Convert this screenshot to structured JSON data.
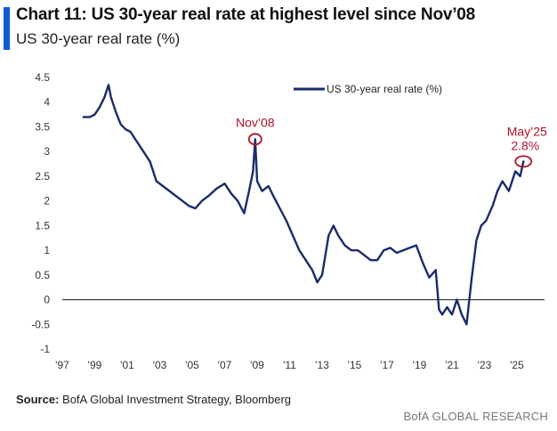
{
  "header": {
    "title": "Chart 11: US 30-year real rate at highest level since Nov’08",
    "subtitle": "US 30-year real rate (%)"
  },
  "footer": {
    "source_label": "Source:",
    "source_text": "BofA Global Investment Strategy, Bloomberg",
    "brand": "BofA GLOBAL RESEARCH"
  },
  "colors": {
    "line": "#1a2b6b",
    "annotation": "#b0102a",
    "accent": "#0a5cd6",
    "zero_line": "#333333"
  },
  "chart_data": {
    "type": "line",
    "title": "Chart 11: US 30-year real rate at highest level since Nov’08",
    "ylabel": "US 30-year real rate (%)",
    "legend": {
      "position": "top-center",
      "entries": [
        "US 30-year real rate (%)"
      ]
    },
    "ylim": [
      -1,
      4.5
    ],
    "xlim": [
      1997,
      2026.7
    ],
    "y_ticks": [
      "4.5",
      "4",
      "3.5",
      "3",
      "2.5",
      "2",
      "1.5",
      "1",
      "0.5",
      "0",
      "-0.5",
      "-1"
    ],
    "x_ticks": [
      "'97",
      "'99",
      "'01",
      "'03",
      "'05",
      "'07",
      "'09",
      "'11",
      "'13",
      "'15",
      "'17",
      "'19",
      "'21",
      "'23",
      "'25"
    ],
    "grid": false,
    "series": [
      {
        "name": "US 30-year real rate (%)",
        "x": [
          1998.3,
          1998.7,
          1999.0,
          1999.3,
          1999.6,
          1999.85,
          2000.0,
          2000.3,
          2000.6,
          2000.9,
          2001.2,
          2001.6,
          2002.0,
          2002.4,
          2002.8,
          2003.2,
          2003.6,
          2004.0,
          2004.4,
          2004.8,
          2005.2,
          2005.6,
          2006.0,
          2006.5,
          2007.0,
          2007.4,
          2007.8,
          2008.2,
          2008.5,
          2008.75,
          2008.88,
          2009.0,
          2009.3,
          2009.7,
          2010.0,
          2010.4,
          2010.8,
          2011.2,
          2011.6,
          2012.0,
          2012.4,
          2012.7,
          2013.0,
          2013.4,
          2013.7,
          2014.0,
          2014.4,
          2014.8,
          2015.2,
          2015.6,
          2016.0,
          2016.4,
          2016.8,
          2017.2,
          2017.6,
          2018.0,
          2018.4,
          2018.8,
          2019.2,
          2019.6,
          2020.0,
          2020.2,
          2020.4,
          2020.7,
          2021.0,
          2021.3,
          2021.6,
          2021.9,
          2022.2,
          2022.5,
          2022.8,
          2023.1,
          2023.5,
          2023.8,
          2024.1,
          2024.5,
          2024.9,
          2025.2,
          2025.4
        ],
        "values": [
          3.7,
          3.7,
          3.75,
          3.9,
          4.1,
          4.35,
          4.1,
          3.8,
          3.55,
          3.45,
          3.4,
          3.2,
          3.0,
          2.8,
          2.4,
          2.3,
          2.2,
          2.1,
          2.0,
          1.9,
          1.85,
          2.0,
          2.1,
          2.25,
          2.35,
          2.15,
          2.0,
          1.75,
          2.2,
          2.6,
          3.25,
          2.4,
          2.2,
          2.3,
          2.1,
          1.85,
          1.6,
          1.3,
          1.0,
          0.8,
          0.6,
          0.35,
          0.5,
          1.3,
          1.5,
          1.3,
          1.1,
          1.0,
          1.0,
          0.9,
          0.8,
          0.8,
          1.0,
          1.05,
          0.95,
          1.0,
          1.05,
          1.1,
          0.75,
          0.45,
          0.6,
          -0.2,
          -0.3,
          -0.15,
          -0.3,
          0.0,
          -0.3,
          -0.5,
          0.4,
          1.2,
          1.5,
          1.6,
          1.9,
          2.2,
          2.4,
          2.2,
          2.6,
          2.5,
          2.8
        ]
      }
    ],
    "annotations": [
      {
        "label": "Nov’08",
        "x": 2008.88,
        "y": 3.25
      },
      {
        "label": "May’25",
        "value_label": "2.8%",
        "x": 2025.4,
        "y": 2.8
      }
    ]
  }
}
